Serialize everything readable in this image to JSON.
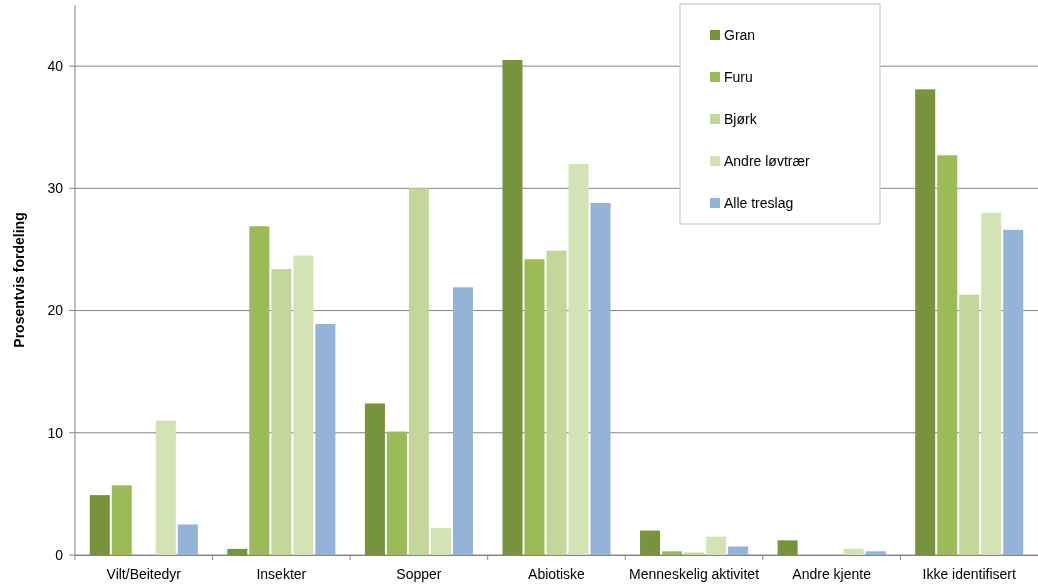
{
  "chart_data": {
    "type": "bar",
    "ylabel": "Prosentvis  fordeling",
    "categories": [
      "Vilt/Beitedyr",
      "Insekter",
      "Sopper",
      "Abiotiske",
      "Menneskelig aktivitet",
      "Andre kjente",
      "Ikke identifisert"
    ],
    "series": [
      {
        "name": "Gran",
        "color": "#77933c",
        "values": [
          4.9,
          0.5,
          12.4,
          40.5,
          2.0,
          1.2,
          38.1
        ]
      },
      {
        "name": "Furu",
        "color": "#9bbb59",
        "values": [
          5.7,
          26.9,
          10.1,
          24.2,
          0.3,
          null,
          32.7
        ]
      },
      {
        "name": "Bjørk",
        "color": "#c4d79b",
        "values": [
          null,
          23.4,
          30.0,
          24.9,
          0.2,
          null,
          21.3
        ]
      },
      {
        "name": "Andre løvtrær",
        "color": "#d4e3b5",
        "values": [
          11.0,
          24.5,
          2.2,
          32.0,
          1.5,
          0.5,
          28.0
        ]
      },
      {
        "name": "Alle treslag",
        "color": "#95b3d7",
        "values": [
          2.5,
          18.9,
          21.9,
          28.8,
          0.7,
          0.3,
          26.6
        ]
      }
    ],
    "ylim": [
      0,
      45
    ],
    "yticks": [
      0,
      10,
      20,
      30,
      40
    ],
    "grid": "y",
    "legend": "top right"
  }
}
